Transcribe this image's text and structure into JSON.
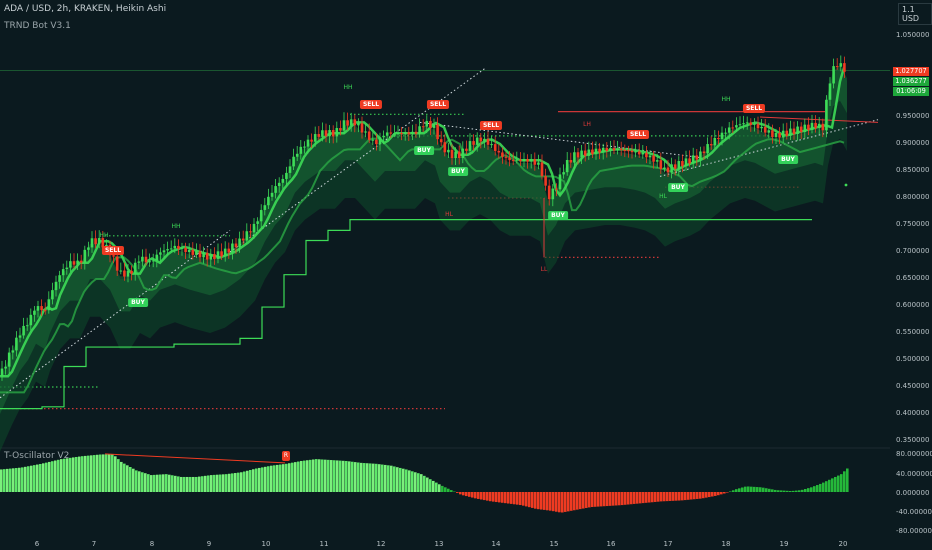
{
  "header": {
    "title": "ADA / USD, 2h, KRAKEN, Heikin Ashi",
    "indicator": "TRND Bot V3.1",
    "currency_button": "1.1 USD"
  },
  "oscillator": {
    "title": "T-Oscillator V2",
    "divergence_badge": "R",
    "y_labels": [
      "80.000000",
      "40.000000",
      "0.000000",
      "-40.000000",
      "-80.000000"
    ]
  },
  "price_axis": {
    "labels": [
      "1.100000",
      "1.050000",
      "1.000000",
      "0.950000",
      "0.900000",
      "0.850000",
      "0.800000",
      "0.750000",
      "0.700000",
      "0.650000",
      "0.600000",
      "0.550000",
      "0.500000",
      "0.450000",
      "0.400000",
      "0.350000"
    ],
    "tags": [
      {
        "text": "1.027707",
        "color": "#ef3b22"
      },
      {
        "text": "1.036277",
        "color": "#1ea83b"
      },
      {
        "text": "01:06:09",
        "color": "#1ea83b"
      }
    ]
  },
  "time_axis": {
    "labels": [
      "6",
      "7",
      "8",
      "9",
      "10",
      "11",
      "12",
      "13",
      "14",
      "15",
      "16",
      "17",
      "18",
      "19",
      "20"
    ]
  },
  "signals": [
    {
      "type": "sell",
      "text": "SELL"
    },
    {
      "type": "buy",
      "text": "BUY"
    },
    {
      "type": "sell",
      "text": "SELL"
    },
    {
      "type": "sell",
      "text": "SELL"
    },
    {
      "type": "buy",
      "text": "BUY"
    },
    {
      "type": "buy",
      "text": "BUY"
    },
    {
      "type": "sell",
      "text": "SELL"
    },
    {
      "type": "buy",
      "text": "BUY"
    },
    {
      "type": "sell",
      "text": "SELL"
    },
    {
      "type": "buy",
      "text": "BUY"
    },
    {
      "type": "sell",
      "text": "SELL"
    },
    {
      "type": "buy",
      "text": "BUY"
    }
  ],
  "annotations": [
    {
      "text": "HH",
      "color": "g"
    },
    {
      "text": "HH",
      "color": "g"
    },
    {
      "text": "HH",
      "color": "g"
    },
    {
      "text": "HL",
      "color": "r"
    },
    {
      "text": "LL",
      "color": "r"
    },
    {
      "text": "LH",
      "color": "r"
    },
    {
      "text": "HL",
      "color": "g"
    },
    {
      "text": "HH",
      "color": "g"
    }
  ],
  "colors": {
    "background": "#0b1a1f",
    "bull": "#3ddc57",
    "bear": "#ef3b22",
    "osc_bull_light": "#7cf07d",
    "osc_bull_dark": "#25b83a",
    "osc_bear": "#ef3b22"
  },
  "chart_data": {
    "type": "candlestick",
    "symbol": "ADA / USD",
    "interval": "2h",
    "exchange": "KRAKEN",
    "style": "Heikin Ashi",
    "ylim": [
      0.33,
      1.11
    ],
    "x_ticks": [
      "6",
      "7",
      "8",
      "9",
      "10",
      "11",
      "12",
      "13",
      "14",
      "15",
      "16",
      "17",
      "18",
      "19",
      "20"
    ],
    "close_path": [
      [
        0,
        0.47
      ],
      [
        12,
        0.52
      ],
      [
        20,
        0.55
      ],
      [
        28,
        0.57
      ],
      [
        36,
        0.6
      ],
      [
        45,
        0.59
      ],
      [
        50,
        0.62
      ],
      [
        60,
        0.66
      ],
      [
        70,
        0.68
      ],
      [
        80,
        0.68
      ],
      [
        90,
        0.72
      ],
      [
        100,
        0.72
      ],
      [
        110,
        0.7
      ],
      [
        120,
        0.66
      ],
      [
        130,
        0.66
      ],
      [
        140,
        0.69
      ],
      [
        150,
        0.68
      ],
      [
        160,
        0.7
      ],
      [
        175,
        0.71
      ],
      [
        190,
        0.7
      ],
      [
        210,
        0.69
      ],
      [
        225,
        0.7
      ],
      [
        240,
        0.72
      ],
      [
        255,
        0.75
      ],
      [
        265,
        0.79
      ],
      [
        275,
        0.82
      ],
      [
        285,
        0.84
      ],
      [
        295,
        0.88
      ],
      [
        305,
        0.9
      ],
      [
        320,
        0.92
      ],
      [
        335,
        0.92
      ],
      [
        345,
        0.94
      ],
      [
        355,
        0.94
      ],
      [
        365,
        0.92
      ],
      [
        375,
        0.9
      ],
      [
        385,
        0.92
      ],
      [
        395,
        0.92
      ],
      [
        405,
        0.92
      ],
      [
        415,
        0.92
      ],
      [
        425,
        0.94
      ],
      [
        435,
        0.93
      ],
      [
        440,
        0.9
      ],
      [
        450,
        0.88
      ],
      [
        460,
        0.88
      ],
      [
        470,
        0.9
      ],
      [
        480,
        0.91
      ],
      [
        490,
        0.9
      ],
      [
        500,
        0.88
      ],
      [
        510,
        0.87
      ],
      [
        520,
        0.87
      ],
      [
        530,
        0.87
      ],
      [
        540,
        0.86
      ],
      [
        548,
        0.8
      ],
      [
        556,
        0.82
      ],
      [
        565,
        0.86
      ],
      [
        575,
        0.88
      ],
      [
        590,
        0.885
      ],
      [
        605,
        0.89
      ],
      [
        620,
        0.89
      ],
      [
        635,
        0.885
      ],
      [
        645,
        0.88
      ],
      [
        655,
        0.87
      ],
      [
        665,
        0.85
      ],
      [
        675,
        0.86
      ],
      [
        690,
        0.87
      ],
      [
        700,
        0.88
      ],
      [
        710,
        0.9
      ],
      [
        720,
        0.915
      ],
      [
        730,
        0.93
      ],
      [
        745,
        0.94
      ],
      [
        755,
        0.935
      ],
      [
        765,
        0.925
      ],
      [
        775,
        0.915
      ],
      [
        785,
        0.92
      ],
      [
        795,
        0.925
      ],
      [
        805,
        0.93
      ],
      [
        815,
        0.935
      ],
      [
        823,
        0.93
      ],
      [
        828,
        1.0
      ],
      [
        833,
        1.04
      ],
      [
        840,
        1.05
      ],
      [
        847,
        1.027
      ]
    ],
    "hlines": [
      {
        "value": 0.45,
        "color": "green",
        "style": "dotted"
      },
      {
        "value": 0.41,
        "color": "red",
        "style": "dotted"
      },
      {
        "value": 0.73,
        "color": "green",
        "style": "dotted"
      },
      {
        "value": 0.955,
        "color": "green",
        "style": "dotted"
      },
      {
        "value": 0.915,
        "color": "green",
        "style": "dotted"
      },
      {
        "value": 0.8,
        "color": "red",
        "style": "dotted"
      },
      {
        "value": 0.69,
        "color": "red",
        "style": "dotted"
      },
      {
        "value": 0.82,
        "color": "red",
        "style": "dotted"
      },
      {
        "value": 0.96,
        "color": "red",
        "style": "solid"
      },
      {
        "value": 1.036,
        "color": "green",
        "style": "solid"
      }
    ],
    "oscillator_values": [
      [
        0,
        48
      ],
      [
        20,
        52
      ],
      [
        40,
        60
      ],
      [
        60,
        70
      ],
      [
        80,
        76
      ],
      [
        100,
        80
      ],
      [
        112,
        80
      ],
      [
        120,
        64
      ],
      [
        135,
        46
      ],
      [
        150,
        36
      ],
      [
        165,
        38
      ],
      [
        180,
        32
      ],
      [
        195,
        32
      ],
      [
        210,
        36
      ],
      [
        225,
        38
      ],
      [
        240,
        42
      ],
      [
        255,
        50
      ],
      [
        270,
        56
      ],
      [
        285,
        60
      ],
      [
        300,
        66
      ],
      [
        315,
        70
      ],
      [
        330,
        68
      ],
      [
        345,
        66
      ],
      [
        360,
        62
      ],
      [
        375,
        60
      ],
      [
        390,
        56
      ],
      [
        405,
        48
      ],
      [
        420,
        38
      ],
      [
        430,
        26
      ],
      [
        440,
        14
      ],
      [
        450,
        4
      ],
      [
        460,
        -6
      ],
      [
        475,
        -14
      ],
      [
        490,
        -20
      ],
      [
        505,
        -24
      ],
      [
        520,
        -28
      ],
      [
        535,
        -36
      ],
      [
        550,
        -40
      ],
      [
        560,
        -44
      ],
      [
        575,
        -38
      ],
      [
        590,
        -32
      ],
      [
        605,
        -30
      ],
      [
        620,
        -28
      ],
      [
        640,
        -24
      ],
      [
        660,
        -20
      ],
      [
        680,
        -18
      ],
      [
        700,
        -14
      ],
      [
        715,
        -8
      ],
      [
        725,
        -2
      ],
      [
        735,
        6
      ],
      [
        745,
        12
      ],
      [
        760,
        10
      ],
      [
        775,
        4
      ],
      [
        790,
        2
      ],
      [
        800,
        4
      ],
      [
        810,
        10
      ],
      [
        820,
        18
      ],
      [
        830,
        28
      ],
      [
        840,
        38
      ],
      [
        846,
        50
      ]
    ],
    "oscillator_ylim": [
      -80,
      80
    ]
  }
}
